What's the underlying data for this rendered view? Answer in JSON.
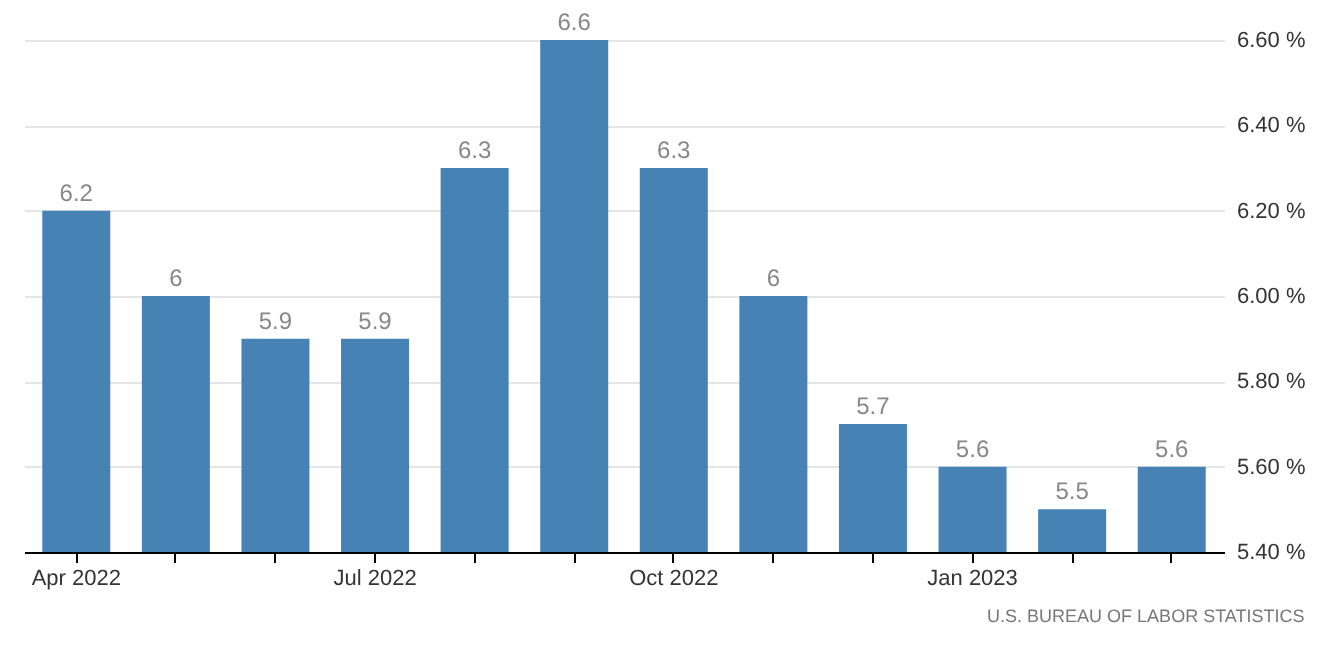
{
  "chart_data": {
    "type": "bar",
    "categories": [
      "Apr 2022",
      null,
      null,
      "Jul 2022",
      null,
      null,
      "Oct 2022",
      null,
      null,
      "Jan 2023",
      null,
      null
    ],
    "values": [
      6.2,
      6,
      5.9,
      5.9,
      6.3,
      6.6,
      6.3,
      6,
      5.7,
      5.6,
      5.5,
      5.6
    ],
    "color": "#4682b4",
    "ylim": [
      5.4,
      6.6
    ],
    "yticks": [
      {
        "value": 5.4,
        "label": "5.40 %"
      },
      {
        "value": 5.6,
        "label": "5.60 %"
      },
      {
        "value": 5.8,
        "label": "5.80 %"
      },
      {
        "value": 6.0,
        "label": "6.00 %"
      },
      {
        "value": 6.2,
        "label": "6.20 %"
      },
      {
        "value": 6.4,
        "label": "6.40 %"
      },
      {
        "value": 6.6,
        "label": "6.60 %"
      }
    ],
    "grid": "y",
    "data_labels": true,
    "annotations": [
      "U.S. BUREAU OF LABOR STATISTICS"
    ]
  }
}
